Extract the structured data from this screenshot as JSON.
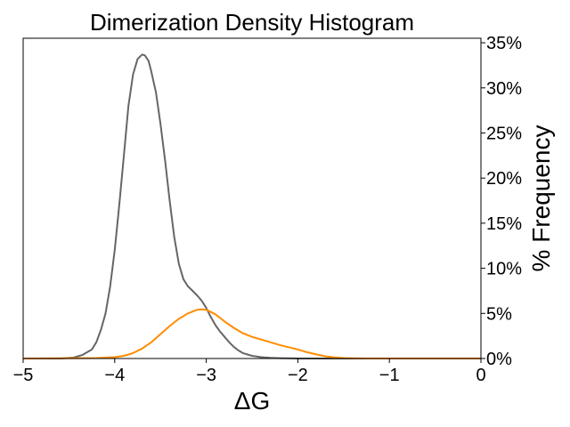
{
  "chart_data": {
    "type": "line",
    "title": "Dimerization Density Histogram",
    "xlabel": "ΔG",
    "ylabel": "% Frequency",
    "xlim": [
      -5,
      0
    ],
    "ylim": [
      0,
      35.5
    ],
    "x_ticks": [
      -5,
      -4,
      -3,
      -2,
      -1,
      0
    ],
    "x_tick_labels": [
      "−5",
      "−4",
      "−3",
      "−2",
      "−1",
      "0"
    ],
    "y_ticks": [
      0,
      5,
      10,
      15,
      20,
      25,
      30,
      35
    ],
    "y_tick_labels": [
      "0%",
      "5%",
      "10%",
      "15%",
      "20%",
      "25%",
      "30%",
      "35%"
    ],
    "y_axis_side": "right",
    "grid": false,
    "legend": "none",
    "series": [
      {
        "color": "#666666",
        "x": [
          -5.0,
          -4.6,
          -4.45,
          -4.35,
          -4.25,
          -4.2,
          -4.15,
          -4.1,
          -4.05,
          -4.0,
          -3.95,
          -3.9,
          -3.85,
          -3.8,
          -3.75,
          -3.7,
          -3.67,
          -3.63,
          -3.6,
          -3.55,
          -3.5,
          -3.45,
          -3.4,
          -3.35,
          -3.3,
          -3.25,
          -3.2,
          -3.15,
          -3.1,
          -3.05,
          -3.0,
          -2.95,
          -2.9,
          -2.85,
          -2.8,
          -2.75,
          -2.7,
          -2.65,
          -2.6,
          -2.5,
          -2.4,
          -2.3,
          -2.2,
          -2.1,
          -2.0,
          -1.8,
          -1.5,
          -1.0,
          0.0
        ],
        "y": [
          0.0,
          0.0,
          0.1,
          0.4,
          1.0,
          1.8,
          3.2,
          5.0,
          8.0,
          12.0,
          17.0,
          22.5,
          28.0,
          31.5,
          33.2,
          33.7,
          33.6,
          33.0,
          31.8,
          29.5,
          26.0,
          22.0,
          17.5,
          13.5,
          10.5,
          8.8,
          8.0,
          7.5,
          7.0,
          6.4,
          5.6,
          4.6,
          3.7,
          3.0,
          2.4,
          1.8,
          1.3,
          0.9,
          0.6,
          0.3,
          0.15,
          0.08,
          0.04,
          0.02,
          0.0,
          0.0,
          0.0,
          0.0,
          0.0
        ]
      },
      {
        "color": "#ff8c00",
        "x": [
          -5.0,
          -4.2,
          -4.0,
          -3.9,
          -3.8,
          -3.7,
          -3.6,
          -3.5,
          -3.4,
          -3.3,
          -3.2,
          -3.1,
          -3.05,
          -3.0,
          -2.9,
          -2.8,
          -2.7,
          -2.6,
          -2.5,
          -2.4,
          -2.3,
          -2.2,
          -2.1,
          -2.0,
          -1.9,
          -1.8,
          -1.7,
          -1.6,
          -1.5,
          -1.4,
          -1.3,
          -1.2,
          -1.0,
          0.0
        ],
        "y": [
          0.0,
          0.05,
          0.15,
          0.3,
          0.6,
          1.1,
          1.8,
          2.7,
          3.6,
          4.4,
          5.0,
          5.4,
          5.45,
          5.4,
          4.9,
          4.1,
          3.4,
          2.8,
          2.4,
          2.1,
          1.8,
          1.5,
          1.25,
          1.0,
          0.7,
          0.45,
          0.25,
          0.12,
          0.05,
          0.02,
          0.01,
          0.0,
          0.0,
          0.0
        ]
      }
    ]
  }
}
